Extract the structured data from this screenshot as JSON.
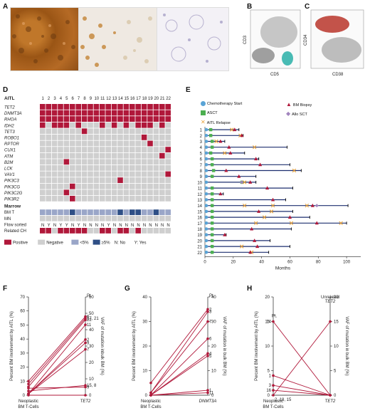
{
  "panels": {
    "A": "A",
    "B": "B",
    "C": "C",
    "D": "D",
    "E": "E",
    "F": "F",
    "G": "G",
    "H": "H"
  },
  "panelB": {
    "ylabel": "CD3",
    "xlabel": "CD5"
  },
  "panelC": {
    "ylabel": "CD34",
    "xlabel": "CD38"
  },
  "panelD": {
    "header": "AITL",
    "cols": [
      "1",
      "2",
      "3",
      "4",
      "5",
      "6",
      "7",
      "8",
      "9",
      "10",
      "11",
      "12",
      "13",
      "14",
      "15",
      "16",
      "17",
      "18",
      "19",
      "20",
      "21",
      "22"
    ],
    "genes": [
      "TET2",
      "DNMT3A",
      "RHOA",
      "IDH2",
      "TET3",
      "ROBO1",
      "RPTOR",
      "CUX1",
      "ATM",
      "B2M",
      "LCK",
      "VAV1",
      "PIK3C3",
      "PIK3CG",
      "PIK3C2G",
      "PIK3R2"
    ],
    "mutations": [
      [
        1,
        1,
        1,
        1,
        1,
        1,
        1,
        1,
        1,
        1,
        1,
        1,
        1,
        1,
        1,
        1,
        1,
        1,
        1,
        1,
        1,
        1
      ],
      [
        1,
        1,
        1,
        1,
        1,
        1,
        1,
        1,
        1,
        1,
        1,
        1,
        1,
        1,
        1,
        1,
        1,
        1,
        1,
        1,
        1,
        1
      ],
      [
        1,
        1,
        1,
        1,
        1,
        1,
        1,
        1,
        1,
        1,
        1,
        1,
        1,
        1,
        1,
        1,
        1,
        1,
        1,
        1,
        1,
        1
      ],
      [
        1,
        0,
        1,
        1,
        1,
        0,
        1,
        0,
        0,
        0,
        1,
        0,
        1,
        0,
        1,
        0,
        1,
        1,
        1,
        0,
        1,
        0
      ],
      [
        0,
        0,
        0,
        0,
        0,
        0,
        0,
        1,
        0,
        0,
        0,
        0,
        0,
        0,
        0,
        0,
        0,
        0,
        0,
        0,
        0,
        0
      ],
      [
        0,
        0,
        0,
        0,
        0,
        0,
        0,
        0,
        0,
        0,
        0,
        0,
        0,
        0,
        0,
        0,
        0,
        1,
        0,
        0,
        0,
        0
      ],
      [
        0,
        0,
        0,
        0,
        0,
        0,
        0,
        0,
        0,
        0,
        0,
        0,
        0,
        0,
        0,
        0,
        0,
        0,
        1,
        0,
        0,
        0
      ],
      [
        0,
        0,
        0,
        0,
        0,
        0,
        0,
        0,
        0,
        0,
        0,
        0,
        0,
        0,
        0,
        0,
        0,
        0,
        0,
        0,
        0,
        1
      ],
      [
        0,
        0,
        0,
        0,
        0,
        0,
        0,
        0,
        0,
        0,
        0,
        0,
        0,
        0,
        0,
        0,
        0,
        0,
        0,
        0,
        1,
        0
      ],
      [
        0,
        0,
        0,
        0,
        1,
        0,
        0,
        0,
        0,
        0,
        0,
        0,
        0,
        0,
        0,
        0,
        0,
        0,
        0,
        0,
        0,
        0
      ],
      [
        0,
        0,
        0,
        0,
        0,
        0,
        0,
        0,
        0,
        0,
        0,
        0,
        0,
        0,
        0,
        0,
        0,
        0,
        0,
        0,
        0,
        0
      ],
      [
        0,
        0,
        0,
        0,
        0,
        0,
        0,
        0,
        0,
        0,
        0,
        0,
        0,
        0,
        0,
        0,
        0,
        0,
        0,
        0,
        0,
        1
      ],
      [
        0,
        0,
        0,
        0,
        0,
        0,
        0,
        0,
        0,
        0,
        0,
        0,
        0,
        1,
        0,
        0,
        0,
        0,
        0,
        0,
        0,
        0
      ],
      [
        0,
        0,
        0,
        0,
        0,
        1,
        0,
        0,
        0,
        0,
        0,
        0,
        0,
        0,
        0,
        0,
        0,
        0,
        0,
        0,
        0,
        0
      ],
      [
        0,
        0,
        0,
        0,
        1,
        0,
        0,
        0,
        0,
        0,
        0,
        0,
        0,
        0,
        0,
        0,
        0,
        0,
        0,
        0,
        0,
        0
      ],
      [
        0,
        0,
        0,
        0,
        0,
        1,
        0,
        0,
        0,
        0,
        0,
        0,
        0,
        0,
        0,
        0,
        0,
        0,
        0,
        0,
        0,
        0
      ]
    ],
    "marrow_label": "Marrow",
    "bmt_label": "BM T",
    "bmt": [
      "l",
      "l",
      "l",
      "l",
      "l",
      "h",
      "l",
      "l",
      "l",
      "l",
      "l",
      "l",
      "l",
      "h",
      "l",
      "h",
      "h",
      "l",
      "l",
      "h",
      "l",
      "l"
    ],
    "mn_label": "MN",
    "mn": [
      0,
      0,
      0,
      0,
      0,
      0,
      0,
      0,
      0,
      0,
      0,
      0,
      0,
      0,
      0,
      0,
      0,
      0,
      0,
      0,
      0,
      0
    ],
    "flow_label": "Flow sorted",
    "flow": [
      "N",
      "Y",
      "N",
      "Y",
      "Y",
      "N",
      "Y",
      "N",
      "N",
      "N",
      "N",
      "Y",
      "N",
      "N",
      "N",
      "N",
      "N",
      "N",
      "N",
      "N",
      "N",
      "N"
    ],
    "ch_label": "Related CH",
    "ch": [
      1,
      1,
      0,
      1,
      1,
      1,
      1,
      1,
      0,
      0,
      1,
      1,
      0,
      1,
      1,
      0,
      1,
      0,
      0,
      0,
      0,
      0
    ],
    "legend": {
      "positive": "Positive",
      "negative": "Negative",
      "low": "<5%",
      "high": "≥5%",
      "no": "N: No",
      "yes": "Y: Yes"
    },
    "colors": {
      "positive": "#b0183a",
      "negative": "#cfcfcf",
      "low": "#9aa6c8",
      "high": "#2f4f86"
    }
  },
  "panelE": {
    "legend": {
      "chemo": "Chemotherapy Start",
      "asct": "ASCT",
      "relapse": "AITL Relapse",
      "biopsy": "BM Biopsy",
      "allo": "Allo SCT"
    },
    "xlabel": "Months",
    "xticks": [
      "0",
      "20",
      "40",
      "60",
      "80",
      "100"
    ],
    "patients": [
      "1",
      "2",
      "3",
      "4",
      "5",
      "6",
      "7",
      "8",
      "9",
      "10",
      "11",
      "12",
      "13",
      "14",
      "15",
      "16",
      "17",
      "18",
      "19",
      "20",
      "21",
      "22"
    ],
    "tracks": [
      {
        "len": 24,
        "chemo": 0,
        "asct": 2,
        "relapse": [
          19
        ],
        "biopsy": [
          21
        ],
        "allo": []
      },
      {
        "len": 27,
        "chemo": 0,
        "asct": 2,
        "relapse": [
          25
        ],
        "biopsy": [
          26
        ],
        "allo": []
      },
      {
        "len": 14,
        "chemo": 0,
        "asct": 3,
        "relapse": [
          8
        ],
        "biopsy": [
          11
        ],
        "allo": []
      },
      {
        "len": 58,
        "chemo": 0,
        "asct": 3,
        "relapse": [
          35
        ],
        "biopsy": [
          17
        ],
        "allo": []
      },
      {
        "len": 28,
        "chemo": 0,
        "asct": 2,
        "relapse": [
          14
        ],
        "biopsy": [
          18
        ],
        "allo": []
      },
      {
        "len": 38,
        "chemo": 0,
        "asct": 3,
        "relapse": [],
        "biopsy": [
          36
        ],
        "allo": []
      },
      {
        "len": 60,
        "chemo": 0,
        "asct": 3,
        "relapse": [],
        "biopsy": [
          39
        ],
        "allo": []
      },
      {
        "len": 68,
        "chemo": 0,
        "asct": 4,
        "relapse": [
          63
        ],
        "biopsy": [
          15
        ],
        "allo": []
      },
      {
        "len": 36,
        "chemo": 0,
        "asct": 3,
        "relapse": [],
        "biopsy": [
          24
        ],
        "allo": []
      },
      {
        "len": 36,
        "chemo": 0,
        "asct": 24,
        "relapse": [
          28
        ],
        "biopsy": [
          32
        ],
        "allo": [
          26
        ]
      },
      {
        "len": 62,
        "chemo": 0,
        "asct": 3,
        "relapse": [],
        "biopsy": [
          44
        ],
        "allo": []
      },
      {
        "len": 13,
        "chemo": 0,
        "asct": 3,
        "relapse": [],
        "biopsy": [
          11
        ],
        "allo": []
      },
      {
        "len": 57,
        "chemo": 0,
        "asct": 3,
        "relapse": [],
        "biopsy": [
          48
        ],
        "allo": []
      },
      {
        "len": 101,
        "chemo": 0,
        "asct": 3,
        "relapse": [
          28,
          48,
          72
        ],
        "biopsy": [
          76
        ],
        "allo": [
          79
        ]
      },
      {
        "len": 62,
        "chemo": 0,
        "asct": 3,
        "relapse": [
          47
        ],
        "biopsy": [
          38
        ],
        "allo": []
      },
      {
        "len": 74,
        "chemo": 0,
        "asct": 3,
        "relapse": [
          42
        ],
        "biopsy": [
          60
        ],
        "allo": []
      },
      {
        "len": 100,
        "chemo": 0,
        "asct": 3,
        "relapse": [
          36,
          61,
          96
        ],
        "biopsy": [
          79
        ],
        "allo": []
      },
      {
        "len": 61,
        "chemo": 0,
        "asct": 3,
        "relapse": [],
        "biopsy": [
          33
        ],
        "allo": []
      },
      {
        "len": 15,
        "chemo": 0,
        "asct": 3,
        "relapse": [],
        "biopsy": [
          14
        ],
        "allo": []
      },
      {
        "len": 46,
        "chemo": 0,
        "asct": 3,
        "relapse": [],
        "biopsy": [
          35
        ],
        "allo": []
      },
      {
        "len": 60,
        "chemo": 0,
        "asct": 3,
        "relapse": [
          26
        ],
        "biopsy": [
          37
        ],
        "allo": []
      },
      {
        "len": 45,
        "chemo": 0,
        "asct": 3,
        "relapse": [
          33
        ],
        "biopsy": [
          32
        ],
        "allo": []
      }
    ],
    "colors": {
      "chemo": "#5aa4d6",
      "asct": "#4caf50",
      "relapse": "#e8a23a",
      "biopsy": "#b0183a",
      "allo": "#a184bd",
      "line": "#1d2f6f"
    }
  },
  "chart_data": [
    {
      "panel": "F",
      "type": "line",
      "ylabel_left": "Percent BM involvement by AITL (%)",
      "ylabel_right": "VAF of mutation inbulk BM (%)",
      "xlabel_left": "Neoplastic BM T-Cells",
      "xlabel_right": "TET2",
      "yleft_ticks": [
        "0",
        "10",
        "20",
        "30",
        "40",
        "50",
        "60",
        "70"
      ],
      "yright_ticks": [
        "0",
        "10",
        "20",
        "30",
        "40",
        "50",
        "60"
      ],
      "yleft_lim": [
        0,
        70
      ],
      "yright_lim": [
        0,
        60
      ],
      "pt_label": "Pt.",
      "pairs": [
        {
          "left": 5,
          "right": 5,
          "label": "9"
        },
        {
          "left": 3,
          "right": 6,
          "label": "15, 8"
        },
        {
          "left": 10,
          "right": 48,
          "label": "6"
        },
        {
          "left": 8,
          "right": 47,
          "label": "17, 21"
        },
        {
          "left": 6,
          "right": 46,
          "label": "22"
        },
        {
          "left": 1,
          "right": 43,
          "label": "11"
        },
        {
          "left": 1,
          "right": 34,
          "label": "2"
        },
        {
          "left": 1,
          "right": 32,
          "label": "9"
        },
        {
          "left": 1,
          "right": 28,
          "label": "7"
        },
        {
          "left": 0,
          "right": 0,
          "label": ""
        }
      ]
    },
    {
      "panel": "G",
      "type": "line",
      "ylabel_left": "Percent BM involvement by AITL (%)",
      "ylabel_right": "VAF of mutation in bulk BM (%)",
      "xlabel_left": "Neoplastic BM T-Cells",
      "xlabel_right": "DNMT3A",
      "yleft_ticks": [
        "0",
        "10",
        "20",
        "30",
        "40"
      ],
      "yright_ticks": [
        "0",
        "10",
        "20",
        "30",
        "40"
      ],
      "yleft_lim": [
        0,
        40
      ],
      "yright_lim": [
        0,
        40
      ],
      "pt_label": "Pt.",
      "pairs": [
        {
          "left": 5,
          "right": 35,
          "label": "2"
        },
        {
          "left": 1,
          "right": 34,
          "label": "3"
        },
        {
          "left": 1,
          "right": 30,
          "label": "7"
        },
        {
          "left": 0,
          "right": 23,
          "label": "6"
        },
        {
          "left": 0,
          "right": 17,
          "label": "4"
        },
        {
          "left": 0,
          "right": 16,
          "label": "5"
        },
        {
          "left": 0,
          "right": 2,
          "label": "1"
        },
        {
          "left": 0,
          "right": 1,
          "label": "11"
        }
      ]
    },
    {
      "panel": "H",
      "type": "line",
      "ylabel_left": "Percent BM involvement by AITL (%)",
      "ylabel_right": "VAF of mutation in bulk BM (%)",
      "xlabel_left": "Neoplastic BM T-Cells",
      "xlabel_right": "TET2",
      "yleft_ticks": [
        "0",
        "5",
        "10",
        "15",
        "20"
      ],
      "yright_ticks": [
        "0",
        "5",
        "10",
        "15",
        "20"
      ],
      "yleft_lim": [
        0,
        20
      ],
      "yright_lim": [
        0,
        20
      ],
      "pt_label": "Pt.",
      "unrelated_label": "Unrelated TET2",
      "pairs": [
        {
          "left": 15,
          "right": 0,
          "label": "14"
        },
        {
          "left": 4,
          "right": 0,
          "label": "1"
        },
        {
          "left": 2,
          "right": 0,
          "label": "3"
        },
        {
          "left": 1,
          "right": 0,
          "label": "16"
        },
        {
          "left": 0,
          "right": 15,
          "label": "2, 18, 15"
        }
      ]
    }
  ]
}
